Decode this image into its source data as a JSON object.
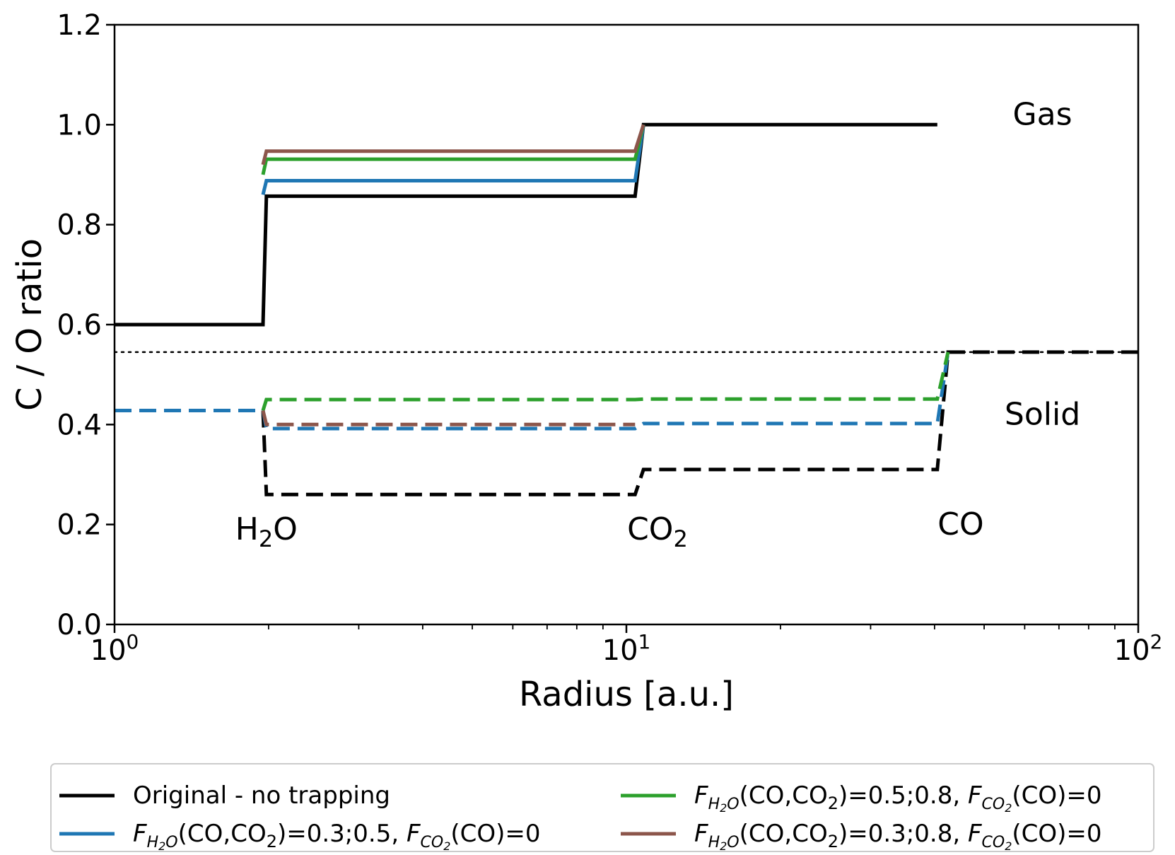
{
  "chart_data": {
    "type": "line",
    "xlabel": "Radius [a.u.]",
    "ylabel": "C / O ratio",
    "xscale": "log",
    "xlim": [
      1,
      100
    ],
    "ylim": [
      0,
      1.2
    ],
    "grid": false,
    "x_ticks": [
      {
        "value": 1,
        "base": "10",
        "exp": "0"
      },
      {
        "value": 10,
        "base": "10",
        "exp": "1"
      },
      {
        "value": 100,
        "base": "10",
        "exp": "2"
      }
    ],
    "y_ticks": [
      "0.0",
      "0.2",
      "0.4",
      "0.6",
      "0.8",
      "1.0",
      "1.2"
    ],
    "y_tick_values": [
      0,
      0.2,
      0.4,
      0.6,
      0.8,
      1.0,
      1.2
    ],
    "reference_line": {
      "y": 0.545,
      "style": "dotted",
      "color": "#000000"
    },
    "annotations": [
      {
        "x": 1.98,
        "y": 0.17,
        "base": "H",
        "sub": "2",
        "rest": "O"
      },
      {
        "x": 11.5,
        "y": 0.17,
        "base": "CO",
        "sub": "2",
        "rest": ""
      },
      {
        "x": 45,
        "y": 0.18,
        "base": "CO",
        "sub": "",
        "rest": ""
      },
      {
        "x": 65,
        "y": 1.0,
        "base": "Gas",
        "sub": "",
        "rest": ""
      },
      {
        "x": 65,
        "y": 0.4,
        "base": "Solid",
        "sub": "",
        "rest": ""
      }
    ],
    "legend_position": "below",
    "series": [
      {
        "name": "Original - no trapping",
        "color": "#000000",
        "dash": "solid",
        "x": [
          1,
          1.95,
          1.98,
          10.4,
          10.8,
          40.5
        ],
        "y": [
          0.6,
          0.6,
          0.857,
          0.857,
          1.0,
          1.0
        ]
      },
      {
        "color": "#1f77b4",
        "dash": "solid",
        "x": [
          1.95,
          1.98,
          10.4,
          10.8
        ],
        "y": [
          0.86,
          0.888,
          0.888,
          1.0
        ]
      },
      {
        "color": "#2ca02c",
        "dash": "solid",
        "x": [
          1.95,
          1.98,
          10.4,
          10.8
        ],
        "y": [
          0.9,
          0.931,
          0.931,
          1.0
        ]
      },
      {
        "color": "#8c564b",
        "dash": "solid",
        "x": [
          1.95,
          1.98,
          10.4,
          10.8
        ],
        "y": [
          0.92,
          0.947,
          0.947,
          1.0
        ]
      },
      {
        "color": "#000000",
        "dash": "dashed",
        "x": [
          1,
          1.95,
          1.98,
          10.4,
          10.8,
          40.5,
          42.5,
          100
        ],
        "y": [
          0.428,
          0.428,
          0.26,
          0.26,
          0.31,
          0.31,
          0.545,
          0.545
        ]
      },
      {
        "color": "#1f77b4",
        "dash": "dashed",
        "x": [
          1,
          1.95,
          1.98,
          10.4,
          10.8,
          40.5,
          42.5
        ],
        "y": [
          0.428,
          0.428,
          0.392,
          0.392,
          0.402,
          0.402,
          0.545
        ]
      },
      {
        "color": "#2ca02c",
        "dash": "dashed",
        "x": [
          1.95,
          1.98,
          10.4,
          10.8,
          40.5,
          42.5
        ],
        "y": [
          0.428,
          0.45,
          0.45,
          0.451,
          0.451,
          0.545
        ]
      },
      {
        "color": "#8c564b",
        "dash": "dashed",
        "x": [
          1.95,
          1.98,
          10.4
        ],
        "y": [
          0.428,
          0.4,
          0.4
        ]
      }
    ],
    "legend": [
      {
        "label": "Original - no trapping",
        "color": "#000000",
        "formula": false
      },
      {
        "color": "#1f77b4",
        "formula": true,
        "vals": "(CO,CO",
        "vals2": ")=0.3;0.5, ",
        "tail": "(CO)=0"
      },
      {
        "color": "#2ca02c",
        "formula": true,
        "vals": "(CO,CO",
        "vals2": ")=0.5;0.8, ",
        "tail": "(CO)=0"
      },
      {
        "color": "#8c564b",
        "formula": true,
        "vals": "(CO,CO",
        "vals2": ")=0.3;0.8, ",
        "tail": "(CO)=0"
      }
    ],
    "legend_symbols": {
      "F": "F",
      "sub1": "H",
      "sub1n": "2",
      "sub1e": "O",
      "sub2": "CO",
      "sub2n": "2",
      "co2sub": "2"
    }
  }
}
